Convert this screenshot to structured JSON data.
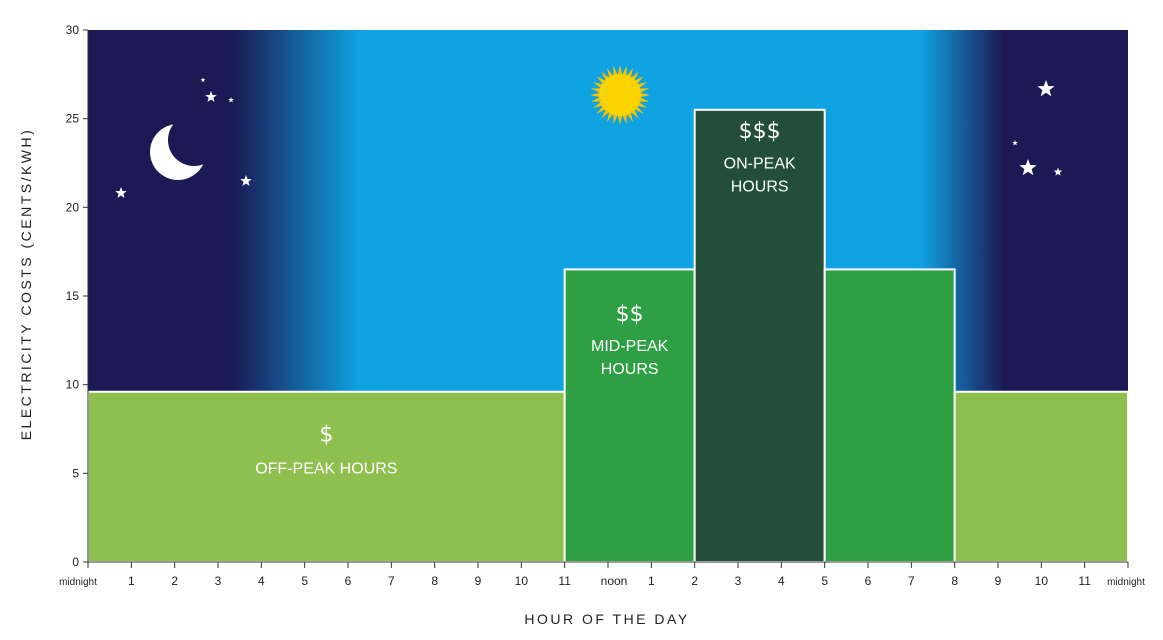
{
  "chart_data": {
    "type": "bar",
    "title": "",
    "xlabel": "HOUR OF THE DAY",
    "ylabel": "ELECTRICITY COSTS (CENTS/KWH)",
    "ylim": [
      0,
      30
    ],
    "yticks": [
      "0",
      "5",
      "10",
      "15",
      "20",
      "25",
      "30"
    ],
    "x_tick_labels": [
      "midnight",
      "1",
      "2",
      "3",
      "4",
      "5",
      "6",
      "7",
      "8",
      "9",
      "10",
      "11",
      "noon",
      "1",
      "2",
      "3",
      "4",
      "5",
      "6",
      "7",
      "8",
      "9",
      "10",
      "11",
      "midnight"
    ],
    "bands": [
      {
        "start_hour": 0,
        "end_hour": 11,
        "value": 9.6,
        "tier": "off-peak",
        "color": "#8fbf4f"
      },
      {
        "start_hour": 11,
        "end_hour": 14,
        "value": 16.5,
        "tier": "mid-peak",
        "color": "#2ea043"
      },
      {
        "start_hour": 14,
        "end_hour": 17,
        "value": 25.5,
        "tier": "on-peak",
        "color": "#234f38"
      },
      {
        "start_hour": 17,
        "end_hour": 20,
        "value": 16.5,
        "tier": "mid-peak",
        "color": "#2ea043"
      },
      {
        "start_hour": 20,
        "end_hour": 24,
        "value": 9.6,
        "tier": "off-peak",
        "color": "#8fbf4f"
      }
    ],
    "labels": {
      "off_peak": {
        "symbol": "$",
        "text": "OFF-PEAK HOURS",
        "center_hour": 5.5,
        "symbol_value": 6.8,
        "text_value": 5.0
      },
      "mid_peak": {
        "symbol": "$$",
        "line1": "MID-PEAK",
        "line2": "HOURS",
        "center_hour": 12.5,
        "symbol_value": 13.6,
        "line1_value": 11.9,
        "line2_value": 10.6
      },
      "on_peak": {
        "symbol": "$$$",
        "line1": "ON-PEAK",
        "line2": "HOURS",
        "center_hour": 15.5,
        "symbol_value": 23.9,
        "line1_value": 22.2,
        "line2_value": 20.9
      }
    },
    "background": {
      "night_color": "#1b1a55",
      "day_color": "#0fa3e2",
      "sky_top_value": 30,
      "day_start_hour": 6,
      "day_end_hour": 19.5
    },
    "icons": [
      "moon-icon",
      "sun-icon",
      "star-icon"
    ]
  }
}
